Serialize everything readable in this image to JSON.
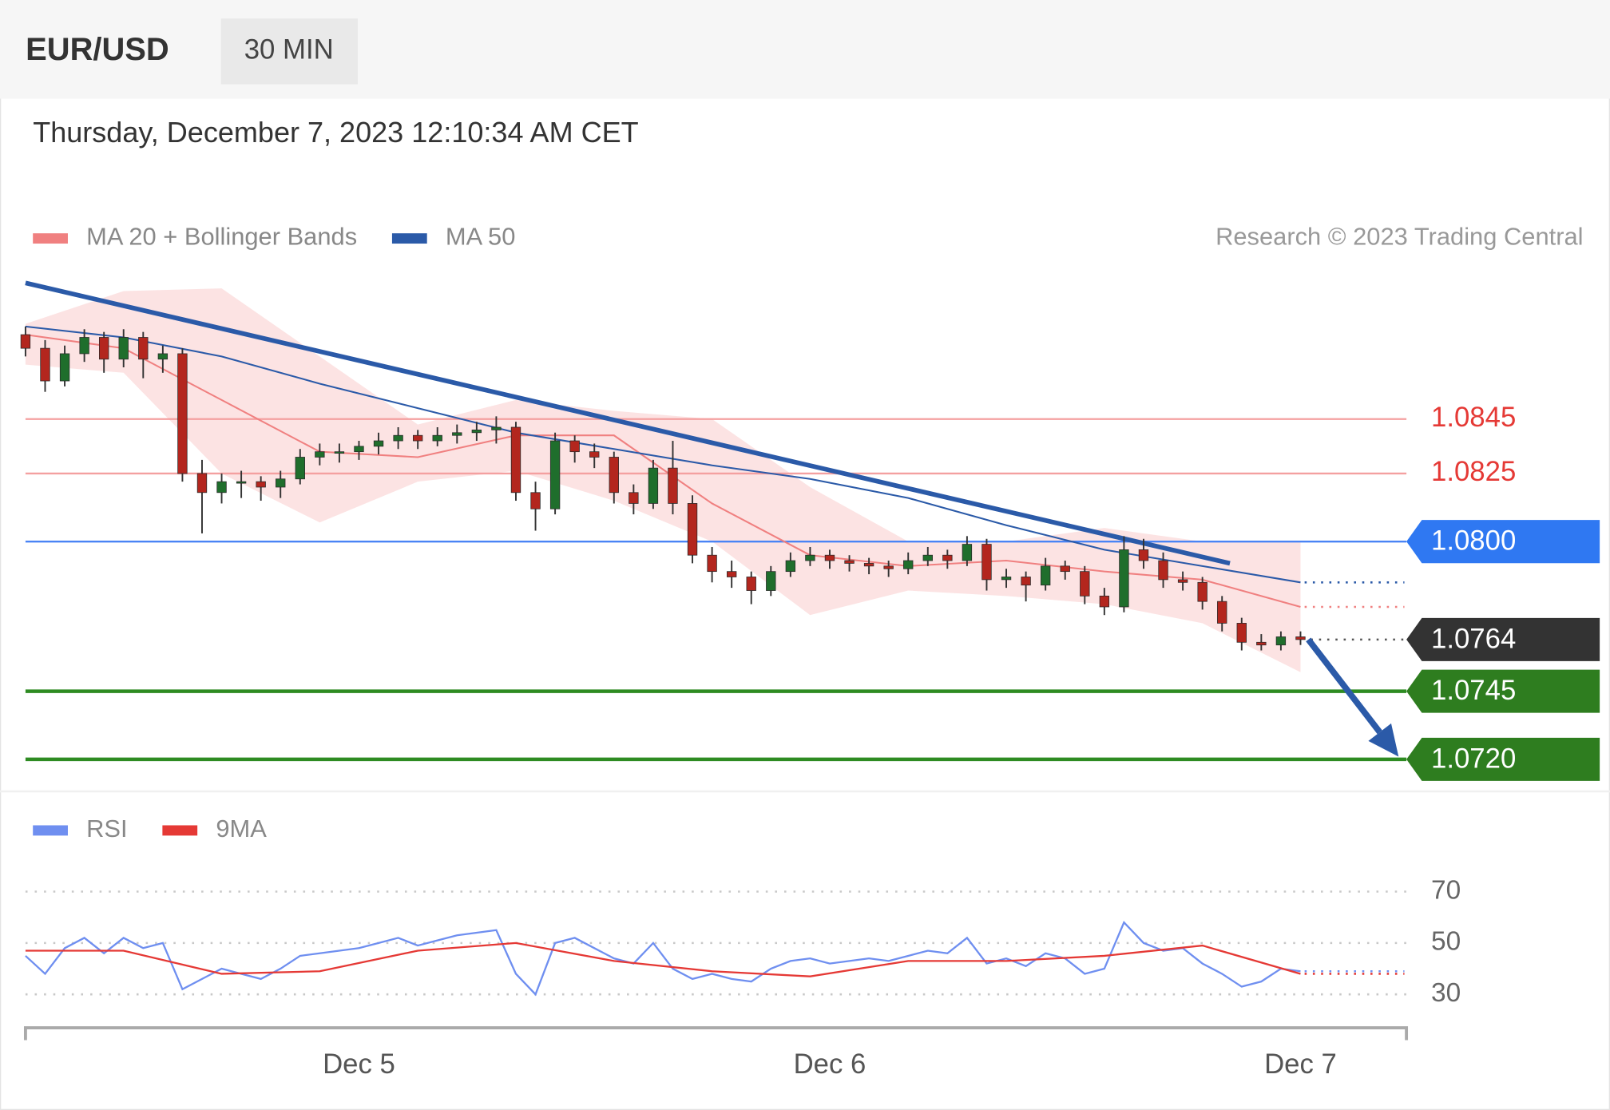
{
  "header": {
    "symbol": "EUR/USD",
    "timeframe": "30 MIN",
    "timestamp": "Thursday, December 7, 2023 12:10:34 AM CET"
  },
  "chart_data": [
    {
      "type": "candlestick",
      "copyright": "Research © 2023 Trading Central",
      "xlim": [
        0,
        70.4
      ],
      "ylim": [
        1.0712,
        1.0897
      ],
      "up_color": "#1f6e2c",
      "down_color": "#b3261e",
      "ohlc": [
        [
          1.0876,
          1.0879,
          1.0868,
          1.0871
        ],
        [
          1.0871,
          1.0874,
          1.0855,
          1.0859
        ],
        [
          1.0859,
          1.0872,
          1.0857,
          1.0869
        ],
        [
          1.0869,
          1.0878,
          1.0866,
          1.0875
        ],
        [
          1.0875,
          1.0877,
          1.0862,
          1.0867
        ],
        [
          1.0867,
          1.0878,
          1.0864,
          1.0875
        ],
        [
          1.0875,
          1.0877,
          1.086,
          1.0867
        ],
        [
          1.0867,
          1.0872,
          1.0862,
          1.0869
        ],
        [
          1.0869,
          1.0871,
          1.0822,
          1.0825
        ],
        [
          1.0825,
          1.083,
          1.0803,
          1.0818
        ],
        [
          1.0818,
          1.0825,
          1.0814,
          1.0822
        ],
        [
          1.0822,
          1.0826,
          1.0816,
          1.0822
        ],
        [
          1.0822,
          1.0824,
          1.0815,
          1.082
        ],
        [
          1.082,
          1.0826,
          1.0816,
          1.0823
        ],
        [
          1.0823,
          1.0834,
          1.0821,
          1.0831
        ],
        [
          1.0831,
          1.0836,
          1.0828,
          1.0833
        ],
        [
          1.0833,
          1.0836,
          1.0829,
          1.0833
        ],
        [
          1.0833,
          1.0837,
          1.083,
          1.0835
        ],
        [
          1.0835,
          1.084,
          1.0832,
          1.0837
        ],
        [
          1.0837,
          1.0842,
          1.0834,
          1.0839
        ],
        [
          1.0839,
          1.0841,
          1.0834,
          1.0837
        ],
        [
          1.0837,
          1.0842,
          1.0835,
          1.0839
        ],
        [
          1.0839,
          1.0843,
          1.0836,
          1.084
        ],
        [
          1.084,
          1.0844,
          1.0837,
          1.0841
        ],
        [
          1.0841,
          1.0846,
          1.0836,
          1.0842
        ],
        [
          1.0842,
          1.0844,
          1.0815,
          1.0818
        ],
        [
          1.0818,
          1.0822,
          1.0804,
          1.0812
        ],
        [
          1.0812,
          1.084,
          1.081,
          1.0837
        ],
        [
          1.0837,
          1.0839,
          1.0829,
          1.0833
        ],
        [
          1.0833,
          1.0836,
          1.0827,
          1.0831
        ],
        [
          1.0831,
          1.0833,
          1.0814,
          1.0818
        ],
        [
          1.0818,
          1.0821,
          1.081,
          1.0814
        ],
        [
          1.0814,
          1.083,
          1.0812,
          1.0827
        ],
        [
          1.0827,
          1.0837,
          1.081,
          1.0814
        ],
        [
          1.0814,
          1.0817,
          1.0792,
          1.0795
        ],
        [
          1.0795,
          1.0798,
          1.0785,
          1.0789
        ],
        [
          1.0789,
          1.0793,
          1.0783,
          1.0787
        ],
        [
          1.0787,
          1.0789,
          1.0777,
          1.0782
        ],
        [
          1.0782,
          1.0791,
          1.078,
          1.0789
        ],
        [
          1.0789,
          1.0796,
          1.0787,
          1.0793
        ],
        [
          1.0793,
          1.0798,
          1.0791,
          1.0795
        ],
        [
          1.0795,
          1.0797,
          1.079,
          1.0793
        ],
        [
          1.0793,
          1.0795,
          1.0789,
          1.0792
        ],
        [
          1.0792,
          1.0794,
          1.0788,
          1.0791
        ],
        [
          1.0791,
          1.0793,
          1.0787,
          1.079
        ],
        [
          1.079,
          1.0796,
          1.0788,
          1.0793
        ],
        [
          1.0793,
          1.0798,
          1.0791,
          1.0795
        ],
        [
          1.0795,
          1.0797,
          1.079,
          1.0793
        ],
        [
          1.0793,
          1.0802,
          1.0791,
          1.0799
        ],
        [
          1.0799,
          1.0801,
          1.0782,
          1.0786
        ],
        [
          1.0786,
          1.079,
          1.0783,
          1.0787
        ],
        [
          1.0787,
          1.0789,
          1.0778,
          1.0784
        ],
        [
          1.0784,
          1.0794,
          1.0782,
          1.0791
        ],
        [
          1.0791,
          1.0793,
          1.0786,
          1.0789
        ],
        [
          1.0789,
          1.0791,
          1.0777,
          1.078
        ],
        [
          1.078,
          1.0783,
          1.0773,
          1.0776
        ],
        [
          1.0776,
          1.0802,
          1.0774,
          1.0797
        ],
        [
          1.0797,
          1.0801,
          1.079,
          1.0793
        ],
        [
          1.0793,
          1.0796,
          1.0783,
          1.0786
        ],
        [
          1.0786,
          1.0789,
          1.0782,
          1.0785
        ],
        [
          1.0785,
          1.0787,
          1.0775,
          1.0778
        ],
        [
          1.0778,
          1.078,
          1.0767,
          1.077
        ],
        [
          1.077,
          1.0772,
          1.076,
          1.0763
        ],
        [
          1.0763,
          1.0766,
          1.076,
          1.0762
        ],
        [
          1.0762,
          1.0767,
          1.076,
          1.0765
        ],
        [
          1.0765,
          1.0767,
          1.0762,
          1.0764
        ]
      ],
      "series": [
        {
          "name": "MA 20 + Bollinger Bands",
          "color": "#f08080",
          "band_color": "#fbdede",
          "x": [
            0,
            5,
            10,
            15,
            20,
            25,
            30,
            35,
            40,
            45,
            50,
            55,
            60,
            65
          ],
          "values": [
            1.0876,
            1.0871,
            1.0852,
            1.0833,
            1.0831,
            1.0839,
            1.0839,
            1.0814,
            1.0795,
            1.0791,
            1.0793,
            1.0789,
            1.0786,
            1.0776
          ],
          "upper": [
            1.088,
            1.0892,
            1.0893,
            1.0868,
            1.0843,
            1.0852,
            1.0848,
            1.0845,
            1.082,
            1.08,
            1.08,
            1.0805,
            1.08,
            1.08
          ],
          "lower": [
            1.0865,
            1.0862,
            1.0825,
            1.0807,
            1.0822,
            1.0826,
            1.0815,
            1.08,
            1.0773,
            1.0782,
            1.078,
            1.0777,
            1.077,
            1.0752
          ]
        },
        {
          "name": "MA 50",
          "color": "#2b5aa8",
          "x": [
            0,
            5,
            10,
            15,
            20,
            25,
            30,
            35,
            40,
            45,
            50,
            55,
            60,
            65
          ],
          "values": [
            1.0879,
            1.0875,
            1.0868,
            1.0858,
            1.0849,
            1.084,
            1.0834,
            1.0828,
            1.0823,
            1.0816,
            1.0806,
            1.0797,
            1.0791,
            1.0785
          ]
        }
      ],
      "levels": [
        {
          "value": 1.0845,
          "label": "1.0845",
          "color": "#e53935",
          "line_color": "#f4a0a0",
          "line": "solid",
          "tag": false
        },
        {
          "value": 1.0825,
          "label": "1.0825",
          "color": "#e53935",
          "line_color": "#f4a0a0",
          "line": "solid",
          "tag": false
        },
        {
          "value": 1.08,
          "label": "1.0800",
          "color": "#2f78f2",
          "line_color": "#4a84f5",
          "line": "solid",
          "tag": true
        },
        {
          "value": 1.0764,
          "label": "1.0764",
          "color": "#333333",
          "line_color": "#555555",
          "line": "dotted",
          "tag": true
        },
        {
          "value": 1.0745,
          "label": "1.0745",
          "color": "#2e7d1f",
          "line_color": "#2e8b22",
          "line": "thick",
          "tag": true
        },
        {
          "value": 1.072,
          "label": "1.0720",
          "color": "#2e7d1f",
          "line_color": "#2e8b22",
          "line": "thick",
          "tag": true
        }
      ],
      "trendline": {
        "x": [
          0,
          61.4
        ],
        "values": [
          1.0895,
          1.0792
        ],
        "color": "#2b5aa8"
      },
      "projection": {
        "x": [
          65.4,
          70
        ],
        "values": [
          1.0764,
          1.0721
        ],
        "color": "#2b5aa8"
      }
    },
    {
      "type": "line",
      "xlim": [
        0,
        70.4
      ],
      "ylim": [
        19,
        79
      ],
      "yticks": [
        30,
        50,
        70
      ],
      "xticks": [
        {
          "value": 17,
          "label": "Dec 5"
        },
        {
          "value": 41,
          "label": "Dec 6"
        },
        {
          "value": 65,
          "label": "Dec 7"
        }
      ],
      "series": [
        {
          "name": "RSI",
          "color": "#6f8ff0",
          "values": [
            45,
            38,
            48,
            52,
            46,
            52,
            48,
            50,
            32,
            36,
            40,
            38,
            36,
            40,
            45,
            46,
            47,
            48,
            50,
            52,
            49,
            51,
            53,
            54,
            55,
            38,
            30,
            50,
            52,
            48,
            44,
            42,
            50,
            40,
            36,
            38,
            36,
            35,
            40,
            43,
            44,
            42,
            43,
            44,
            43,
            45,
            47,
            46,
            52,
            42,
            44,
            41,
            46,
            44,
            38,
            40,
            58,
            50,
            47,
            48,
            42,
            38,
            33,
            35,
            40,
            39
          ]
        },
        {
          "name": "9MA",
          "color": "#e53935",
          "x": [
            0,
            5,
            10,
            15,
            20,
            25,
            30,
            35,
            40,
            45,
            50,
            55,
            60,
            65
          ],
          "values": [
            47,
            47,
            38,
            39,
            47,
            50,
            43,
            39,
            37,
            43,
            43,
            45,
            49,
            38
          ]
        }
      ]
    }
  ]
}
